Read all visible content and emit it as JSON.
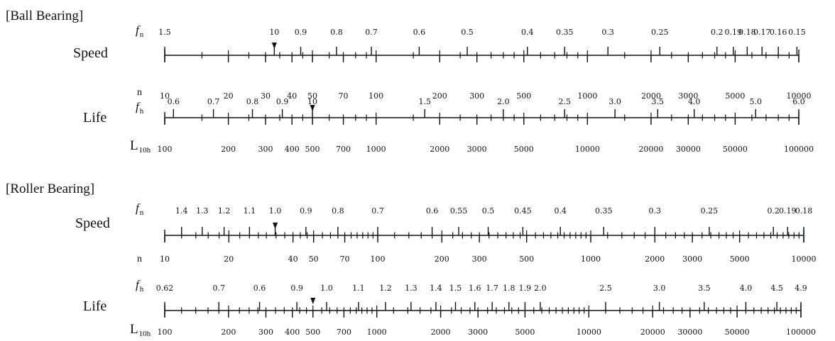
{
  "ball": {
    "title": "[Ball Bearing]",
    "speed": {
      "label": "Speed",
      "top_symbol": "f",
      "top_symbol_sub": "n",
      "bottom_symbol": "n",
      "top_ticks": [
        {
          "t": "1.5",
          "v": 10
        },
        {
          "t": "10",
          "v": 33
        },
        {
          "t": "0.9",
          "v": 44
        },
        {
          "t": "0.8",
          "v": 65
        },
        {
          "t": "0.7",
          "v": 95
        },
        {
          "t": "0.6",
          "v": 160
        },
        {
          "t": "0.5",
          "v": 270
        },
        {
          "t": "0.4",
          "v": 520
        },
        {
          "t": "0.35",
          "v": 780
        },
        {
          "t": "0.3",
          "v": 1250
        },
        {
          "t": "0.25",
          "v": 2200
        },
        {
          "t": "0.2",
          "v": 4100
        },
        {
          "t": "0.19",
          "v": 4900
        },
        {
          "t": "0.18",
          "v": 5700
        },
        {
          "t": "0.17",
          "v": 6700
        },
        {
          "t": "0.16",
          "v": 8000
        },
        {
          "t": "0.15",
          "v": 9800
        }
      ],
      "bottom_ticks": [
        {
          "t": "10",
          "v": 10
        },
        {
          "t": "20",
          "v": 20
        },
        {
          "t": "30",
          "v": 30
        },
        {
          "t": "40",
          "v": 40
        },
        {
          "t": "50",
          "v": 50
        },
        {
          "t": "70",
          "v": 70
        },
        {
          "t": "100",
          "v": 100
        },
        {
          "t": "200",
          "v": 200
        },
        {
          "t": "300",
          "v": 300
        },
        {
          "t": "500",
          "v": 500
        },
        {
          "t": "1000",
          "v": 1000
        },
        {
          "t": "2000",
          "v": 2000
        },
        {
          "t": "3000",
          "v": 3000
        },
        {
          "t": "5000",
          "v": 5000
        },
        {
          "t": "10000",
          "v": 10000
        }
      ],
      "marker": 33
    },
    "life": {
      "label": "Life",
      "top_symbol": "f",
      "top_symbol_sub": "h",
      "bottom_symbol": "L",
      "bottom_symbol_sub": "10h",
      "top_ticks": [
        {
          "t": "0.6",
          "v": 110
        },
        {
          "t": "0.7",
          "v": 170
        },
        {
          "t": "0.8",
          "v": 260
        },
        {
          "t": "0.9",
          "v": 360
        },
        {
          "t": "10",
          "v": 500
        },
        {
          "t": "1.5",
          "v": 1700
        },
        {
          "t": "2.0",
          "v": 4000
        },
        {
          "t": "2.5",
          "v": 7800
        },
        {
          "t": "3.0",
          "v": 13500
        },
        {
          "t": "3.5",
          "v": 21500
        },
        {
          "t": "4.0",
          "v": 32000
        },
        {
          "t": "5.0",
          "v": 62500
        },
        {
          "t": "6.0",
          "v": 100000
        }
      ],
      "bottom_ticks": [
        {
          "t": "100",
          "v": 100
        },
        {
          "t": "200",
          "v": 200
        },
        {
          "t": "300",
          "v": 300
        },
        {
          "t": "400",
          "v": 400
        },
        {
          "t": "500",
          "v": 500
        },
        {
          "t": "700",
          "v": 700
        },
        {
          "t": "1000",
          "v": 1000
        },
        {
          "t": "2000",
          "v": 2000
        },
        {
          "t": "3000",
          "v": 3000
        },
        {
          "t": "5000",
          "v": 5000
        },
        {
          "t": "10000",
          "v": 10000
        },
        {
          "t": "20000",
          "v": 20000
        },
        {
          "t": "30000",
          "v": 30000
        },
        {
          "t": "50000",
          "v": 50000
        },
        {
          "t": "100000",
          "v": 100000
        }
      ],
      "marker": 500
    }
  },
  "roller": {
    "title": "[Roller Bearing]",
    "speed": {
      "label": "Speed",
      "top_symbol": "f",
      "top_symbol_sub": "n",
      "bottom_symbol": "n",
      "top_ticks": [
        {
          "t": "1.4",
          "v": 12
        },
        {
          "t": "1.3",
          "v": 15
        },
        {
          "t": "1.2",
          "v": 19
        },
        {
          "t": "1.1",
          "v": 25
        },
        {
          "t": "1.0",
          "v": 33
        },
        {
          "t": "0.9",
          "v": 46
        },
        {
          "t": "0.8",
          "v": 65
        },
        {
          "t": "0.7",
          "v": 100
        },
        {
          "t": "0.6",
          "v": 180
        },
        {
          "t": "0.55",
          "v": 240
        },
        {
          "t": "0.5",
          "v": 330
        },
        {
          "t": "0.45",
          "v": 480
        },
        {
          "t": "0.4",
          "v": 720
        },
        {
          "t": "0.35",
          "v": 1150
        },
        {
          "t": "0.3",
          "v": 2000
        },
        {
          "t": "0.25",
          "v": 3600
        },
        {
          "t": "0.2",
          "v": 7200
        },
        {
          "t": "0.19",
          "v": 8400
        },
        {
          "t": "0.18",
          "v": 10000
        }
      ],
      "bottom_ticks": [
        {
          "t": "10",
          "v": 10
        },
        {
          "t": "20",
          "v": 20
        },
        {
          "t": "40",
          "v": 40
        },
        {
          "t": "50",
          "v": 50
        },
        {
          "t": "70",
          "v": 70
        },
        {
          "t": "100",
          "v": 100
        },
        {
          "t": "200",
          "v": 200
        },
        {
          "t": "300",
          "v": 300
        },
        {
          "t": "500",
          "v": 500
        },
        {
          "t": "1000",
          "v": 1000
        },
        {
          "t": "2000",
          "v": 2000
        },
        {
          "t": "3000",
          "v": 3000
        },
        {
          "t": "5000",
          "v": 5000
        },
        {
          "t": "10000",
          "v": 10000
        }
      ],
      "marker": 33,
      "end_color": "#29b6f6"
    },
    "life": {
      "label": "Life",
      "top_symbol": "f",
      "top_symbol_sub": "h",
      "bottom_symbol": "L",
      "bottom_symbol_sub": "10h",
      "top_ticks": [
        {
          "t": "0.62",
          "v": 100
        },
        {
          "t": "0.7",
          "v": 180
        },
        {
          "t": "0.6",
          "v": 280
        },
        {
          "t": "0.9",
          "v": 420
        },
        {
          "t": "1.0",
          "v": 580
        },
        {
          "t": "1.1",
          "v": 820
        },
        {
          "t": "1.2",
          "v": 1100
        },
        {
          "t": "1.3",
          "v": 1450
        },
        {
          "t": "1.4",
          "v": 1900
        },
        {
          "t": "1.5",
          "v": 2350
        },
        {
          "t": "1.6",
          "v": 2900
        },
        {
          "t": "1.7",
          "v": 3500
        },
        {
          "t": "1.8",
          "v": 4200
        },
        {
          "t": "1.9",
          "v": 5000
        },
        {
          "t": "2.0",
          "v": 5900
        },
        {
          "t": "2.5",
          "v": 12000
        },
        {
          "t": "3.0",
          "v": 21500
        },
        {
          "t": "3.5",
          "v": 35000
        },
        {
          "t": "4.0",
          "v": 55000
        },
        {
          "t": "4.5",
          "v": 77000
        },
        {
          "t": "4.9",
          "v": 100000
        }
      ],
      "bottom_ticks": [
        {
          "t": "100",
          "v": 100
        },
        {
          "t": "200",
          "v": 200
        },
        {
          "t": "300",
          "v": 300
        },
        {
          "t": "400",
          "v": 400
        },
        {
          "t": "500",
          "v": 500
        },
        {
          "t": "700",
          "v": 700
        },
        {
          "t": "1000",
          "v": 1000
        },
        {
          "t": "2000",
          "v": 2000
        },
        {
          "t": "3000",
          "v": 3000
        },
        {
          "t": "5000",
          "v": 5000
        },
        {
          "t": "10000",
          "v": 10000
        },
        {
          "t": "20000",
          "v": 20000
        },
        {
          "t": "30000",
          "v": 30000
        },
        {
          "t": "50000",
          "v": 50000
        },
        {
          "t": "100000",
          "v": 100000
        }
      ],
      "marker": 500
    }
  }
}
